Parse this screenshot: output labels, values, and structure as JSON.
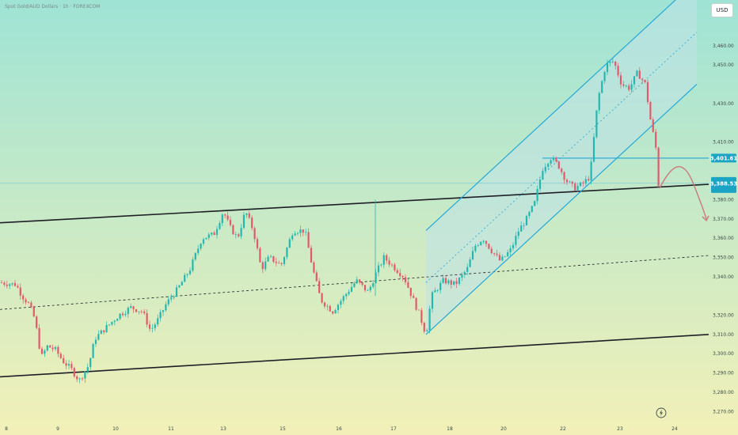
{
  "header": {
    "symbol_title": "Spot Gold/AUD Dollars · 1h · FOREXCOM",
    "currency_label": "USD"
  },
  "colors": {
    "bg_top": "#9fe3d5",
    "bg_bottom": "#f2f0b8",
    "candle_up": "#26b6b0",
    "candle_down": "#e05a6a",
    "channel_line": "#23a8d8",
    "channel_fill": "#bfe2e4",
    "trend_line": "#1e1e26",
    "arrow": "#c97a7a",
    "badge": "#1ca4c4"
  },
  "chart_data": {
    "type": "candlestick",
    "y_axis_labels": [
      "3,460.00",
      "3,450.00",
      "3,430.00",
      "3,410.00",
      "3,390.00",
      "3,380.00",
      "3,370.00",
      "3,360.00",
      "3,350.00",
      "3,340.00",
      "3,320.00",
      "3,310.00",
      "3,300.00",
      "3,290.00",
      "3,280.00",
      "3,270.00"
    ],
    "x_axis_labels": [
      "8",
      "9",
      "10",
      "11",
      "13",
      "15",
      "16",
      "17",
      "18",
      "20",
      "22",
      "23",
      "24"
    ],
    "ylim": [
      3266,
      3478
    ],
    "price_badges": [
      {
        "label": "3,401.61",
        "value": 3401.61
      },
      {
        "label": "3,388.53",
        "value": 3388.5
      }
    ],
    "series": [
      {
        "name": "",
        "close_points": [
          [
            0,
            3337
          ],
          [
            20,
            3336
          ],
          [
            28,
            3330
          ],
          [
            36,
            3326
          ],
          [
            44,
            3318
          ],
          [
            52,
            3298
          ],
          [
            60,
            3304
          ],
          [
            70,
            3302
          ],
          [
            80,
            3296
          ],
          [
            90,
            3292
          ],
          [
            100,
            3286
          ],
          [
            112,
            3294
          ],
          [
            120,
            3308
          ],
          [
            135,
            3314
          ],
          [
            150,
            3320
          ],
          [
            165,
            3324
          ],
          [
            180,
            3322
          ],
          [
            190,
            3312
          ],
          [
            200,
            3318
          ],
          [
            210,
            3326
          ],
          [
            225,
            3334
          ],
          [
            240,
            3344
          ],
          [
            255,
            3360
          ],
          [
            270,
            3362
          ],
          [
            282,
            3374
          ],
          [
            290,
            3366
          ],
          [
            300,
            3360
          ],
          [
            310,
            3374
          ],
          [
            320,
            3364
          ],
          [
            330,
            3344
          ],
          [
            340,
            3350
          ],
          [
            355,
            3346
          ],
          [
            370,
            3364
          ],
          [
            385,
            3364
          ],
          [
            395,
            3344
          ],
          [
            405,
            3328
          ],
          [
            420,
            3322
          ],
          [
            435,
            3330
          ],
          [
            450,
            3338
          ],
          [
            465,
            3332
          ],
          [
            475,
            3342
          ],
          [
            485,
            3350
          ],
          [
            500,
            3344
          ],
          [
            510,
            3340
          ],
          [
            520,
            3330
          ],
          [
            530,
            3320
          ],
          [
            538,
            3310
          ],
          [
            545,
            3330
          ],
          [
            560,
            3338
          ],
          [
            575,
            3336
          ],
          [
            590,
            3344
          ],
          [
            600,
            3356
          ],
          [
            610,
            3360
          ],
          [
            620,
            3354
          ],
          [
            632,
            3348
          ],
          [
            645,
            3354
          ],
          [
            655,
            3364
          ],
          [
            665,
            3370
          ],
          [
            675,
            3378
          ],
          [
            685,
            3396
          ],
          [
            695,
            3402
          ],
          [
            705,
            3398
          ],
          [
            715,
            3390
          ],
          [
            725,
            3386
          ],
          [
            735,
            3388
          ],
          [
            745,
            3392
          ],
          [
            755,
            3432
          ],
          [
            765,
            3450
          ],
          [
            775,
            3452
          ],
          [
            785,
            3440
          ],
          [
            795,
            3438
          ],
          [
            805,
            3446
          ],
          [
            815,
            3440
          ],
          [
            822,
            3420
          ],
          [
            828,
            3408
          ],
          [
            832,
            3386
          ]
        ]
      }
    ],
    "drawings": {
      "channel_upper": [
        [
          538,
          3364
        ],
        [
          880,
          3494
        ]
      ],
      "channel_lower": [
        [
          538,
          3310
        ],
        [
          880,
          3440
        ]
      ],
      "channel_mid": [
        [
          538,
          3337
        ],
        [
          880,
          3467
        ]
      ],
      "trend_upper": [
        [
          0,
          3368
        ],
        [
          895,
          3388
        ]
      ],
      "trend_mid": [
        [
          0,
          3323
        ],
        [
          895,
          3351
        ]
      ],
      "trend_lower": [
        [
          0,
          3288
        ],
        [
          895,
          3310
        ]
      ],
      "horizontal_level": 3401.6,
      "current_price": 3388.5,
      "arrow_path": [
        [
          833,
          3386
        ],
        [
          848,
          3398
        ],
        [
          862,
          3397
        ],
        [
          876,
          3388
        ],
        [
          892,
          3370
        ]
      ]
    }
  }
}
